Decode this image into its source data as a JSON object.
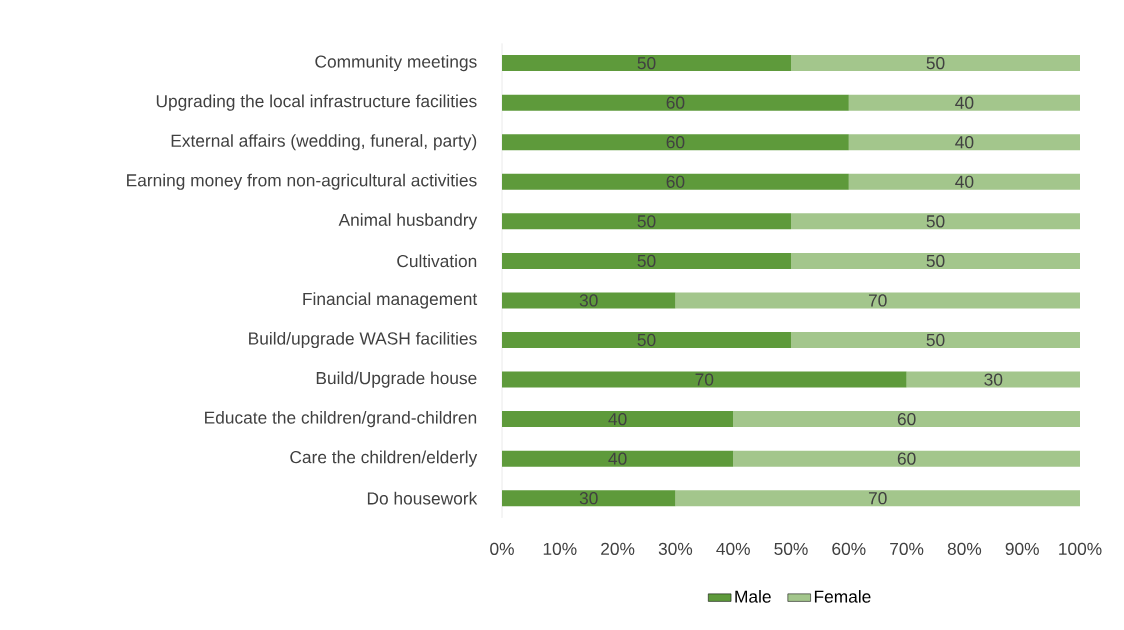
{
  "chart_data": {
    "type": "bar",
    "orientation": "horizontal",
    "stacked": true,
    "categories": [
      "Community meetings",
      "Upgrading the local infrastructure facilities",
      "External affairs (wedding, funeral, party)",
      "Earning money from non-agricultural activities",
      "Animal husbandry",
      "Cultivation",
      "Financial management",
      "Build/upgrade WASH facilities",
      "Build/Upgrade house",
      "Educate the children/grand-children",
      "Care the children/elderly",
      "Do housework"
    ],
    "series": [
      {
        "name": "Male",
        "color": "#5e9a3b",
        "values": [
          50,
          60,
          60,
          60,
          50,
          50,
          30,
          50,
          70,
          40,
          40,
          30
        ]
      },
      {
        "name": "Female",
        "color": "#a3c68c",
        "values": [
          50,
          40,
          40,
          40,
          50,
          50,
          70,
          50,
          30,
          60,
          60,
          70
        ]
      }
    ],
    "xlim": [
      0,
      100
    ],
    "xticks": [
      {
        "value": 0,
        "label": "0%"
      },
      {
        "value": 10,
        "label": "10%"
      },
      {
        "value": 20,
        "label": "20%"
      },
      {
        "value": 30,
        "label": "30%"
      },
      {
        "value": 40,
        "label": "40%"
      },
      {
        "value": 50,
        "label": "50%"
      },
      {
        "value": 60,
        "label": "60%"
      },
      {
        "value": 70,
        "label": "70%"
      },
      {
        "value": 80,
        "label": "80%"
      },
      {
        "value": 90,
        "label": "90%"
      },
      {
        "value": 100,
        "label": "100%"
      }
    ],
    "data_labels": true,
    "legend": "bottom",
    "grid": false
  }
}
